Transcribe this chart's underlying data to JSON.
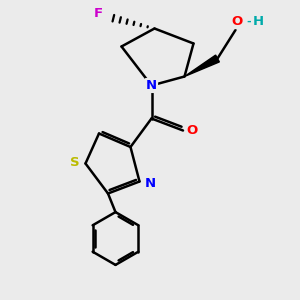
{
  "bg_color": "#ebebeb",
  "bond_color": "#000000",
  "bond_width": 1.8,
  "atom_colors": {
    "N": "#0000ff",
    "O": "#ff0000",
    "S": "#bbbb00",
    "F": "#cc00cc",
    "C": "#000000",
    "H": "#00aaaa"
  },
  "font_size": 9.5,
  "fig_size": [
    3.0,
    3.0
  ],
  "dpi": 100
}
